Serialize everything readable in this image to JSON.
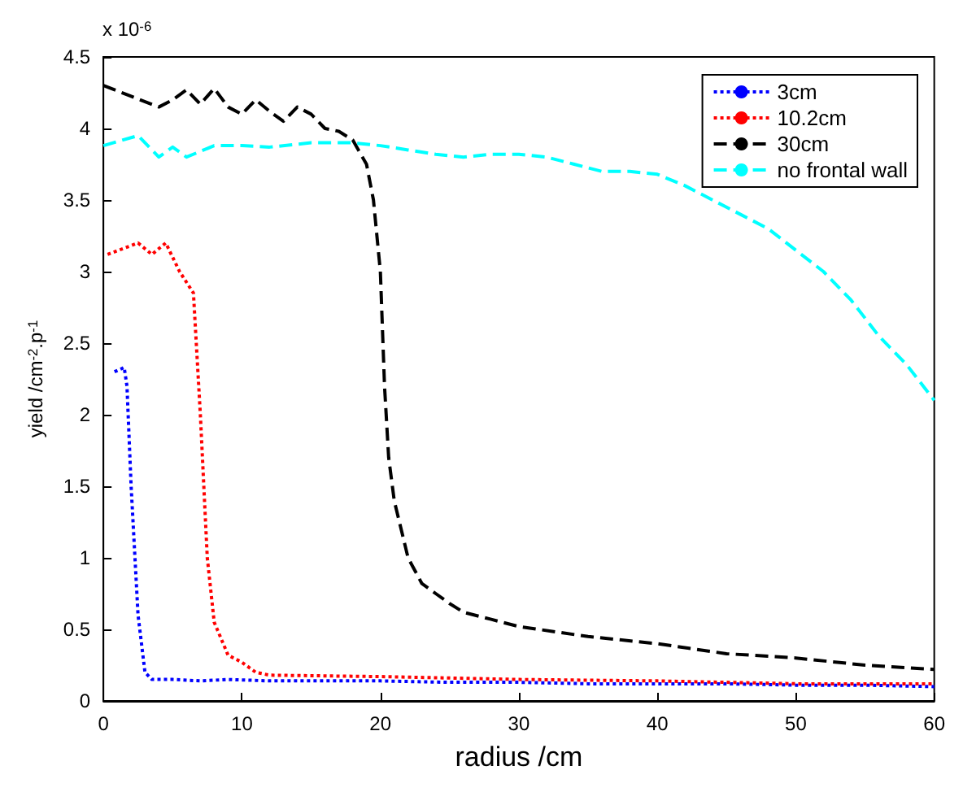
{
  "chart_data": {
    "type": "line",
    "xlabel": "radius /cm",
    "ylabel": "yield /cm$^{-2}$.p$^{-1}$",
    "annotations": [
      "x 10$^{-6}$"
    ],
    "xlim": [
      0,
      60
    ],
    "xticks": [
      0,
      10,
      20,
      30,
      40,
      50,
      60
    ],
    "ylim": [
      0,
      4.5
    ],
    "yticks": [
      0,
      0.5,
      1,
      1.5,
      2,
      2.5,
      3,
      3.5,
      4,
      4.5
    ],
    "grid": false,
    "legend": "top right",
    "marker": "none",
    "series": [
      {
        "name": "3cm",
        "color": "#0000ff",
        "line_style": "dotted",
        "x": [
          0.8,
          1.5,
          1.7,
          2,
          2.5,
          3,
          3.5,
          5,
          7,
          9,
          12,
          15,
          20,
          25,
          30,
          35,
          40,
          45,
          50,
          55,
          60
        ],
        "values": [
          2.3,
          2.33,
          2.2,
          1.5,
          0.6,
          0.2,
          0.15,
          0.15,
          0.14,
          0.15,
          0.14,
          0.14,
          0.14,
          0.13,
          0.13,
          0.12,
          0.12,
          0.12,
          0.11,
          0.11,
          0.1
        ]
      },
      {
        "name": "10.2cm",
        "color": "#ff0000",
        "line_style": "dotted",
        "x": [
          0.3,
          2.5,
          3.5,
          4.5,
          5.5,
          6.5,
          7,
          7.5,
          8,
          9,
          10,
          11,
          12,
          20,
          30,
          40,
          50,
          60
        ],
        "values": [
          3.12,
          3.2,
          3.12,
          3.2,
          3.0,
          2.85,
          2.0,
          1.0,
          0.55,
          0.32,
          0.27,
          0.2,
          0.18,
          0.17,
          0.15,
          0.14,
          0.12,
          0.12
        ]
      },
      {
        "name": "30cm",
        "color": "#000000",
        "line_style": "dashed",
        "x": [
          0,
          4,
          5,
          6,
          7,
          8,
          9,
          10,
          11,
          12,
          13,
          14,
          15,
          16,
          17,
          18,
          19,
          19.5,
          20,
          20.3,
          20.6,
          21,
          22,
          23,
          24,
          25,
          26,
          28,
          30,
          35,
          40,
          45,
          50,
          55,
          60
        ],
        "values": [
          4.3,
          4.15,
          4.2,
          4.27,
          4.17,
          4.28,
          4.15,
          4.1,
          4.2,
          4.12,
          4.05,
          4.15,
          4.1,
          4.0,
          3.98,
          3.92,
          3.75,
          3.5,
          3.0,
          2.2,
          1.7,
          1.4,
          1.0,
          0.82,
          0.75,
          0.68,
          0.62,
          0.57,
          0.52,
          0.45,
          0.4,
          0.33,
          0.3,
          0.25,
          0.22
        ]
      },
      {
        "name": "no frontal wall",
        "color": "#00ffff",
        "line_style": "dashed",
        "x": [
          0,
          2.5,
          4,
          5,
          6,
          8,
          10,
          12,
          15,
          18,
          20,
          22,
          24,
          26,
          28,
          30,
          32,
          34,
          36,
          38,
          40,
          42,
          44,
          46,
          48,
          50,
          52,
          54,
          56,
          58,
          60
        ],
        "values": [
          3.88,
          3.95,
          3.8,
          3.87,
          3.8,
          3.88,
          3.88,
          3.87,
          3.9,
          3.9,
          3.88,
          3.85,
          3.82,
          3.8,
          3.82,
          3.82,
          3.8,
          3.75,
          3.7,
          3.7,
          3.68,
          3.6,
          3.5,
          3.4,
          3.3,
          3.15,
          3.0,
          2.8,
          2.55,
          2.35,
          2.1
        ]
      }
    ]
  }
}
